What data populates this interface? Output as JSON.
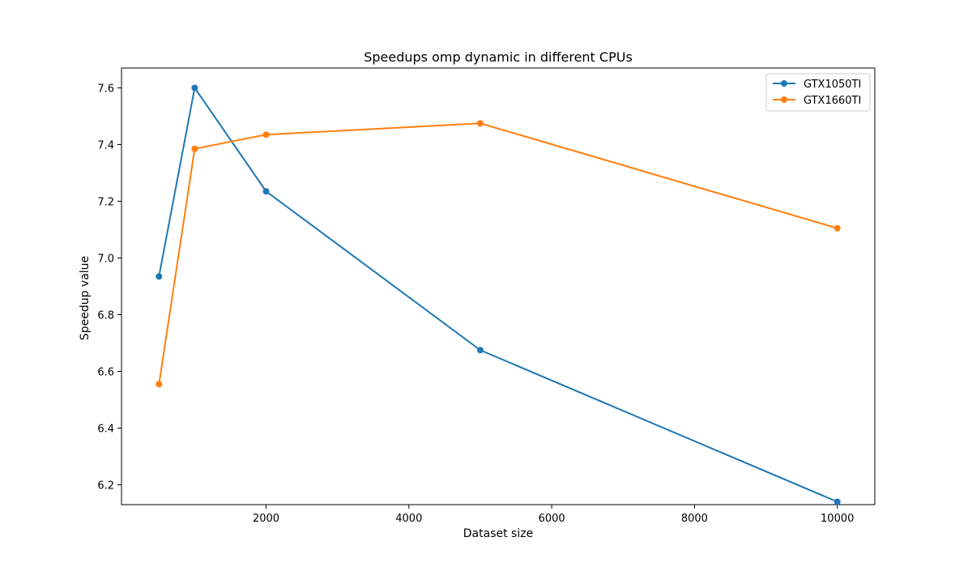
{
  "chart_data": {
    "type": "line",
    "title": "Speedups omp dynamic in different CPUs",
    "xlabel": "Dataset size",
    "ylabel": "Speedup value",
    "xlim": [
      -25,
      10525
    ],
    "ylim": [
      6.13,
      7.67
    ],
    "xticks": [
      2000,
      4000,
      6000,
      8000,
      10000
    ],
    "yticks": [
      6.2,
      6.4,
      6.6,
      6.8,
      7.0,
      7.2,
      7.4,
      7.6
    ],
    "grid": false,
    "legend_position": "top-right",
    "x": [
      500,
      1000,
      2000,
      5000,
      10000
    ],
    "series": [
      {
        "name": "GTX1050TI",
        "color": "#1f77b4",
        "values": [
          6.935,
          7.6,
          7.235,
          6.675,
          6.14
        ]
      },
      {
        "name": "GTX1660TI",
        "color": "#ff7f0e",
        "values": [
          6.555,
          7.385,
          7.435,
          7.475,
          7.105
        ]
      }
    ]
  }
}
